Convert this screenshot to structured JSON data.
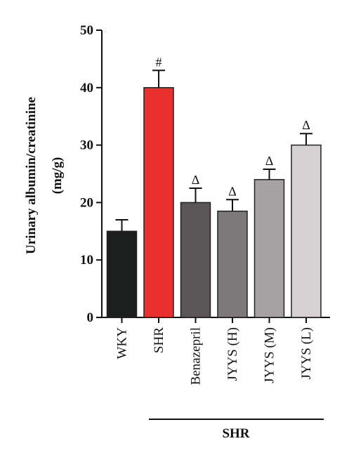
{
  "chart_data": {
    "type": "bar",
    "ylabel_line1": "Urinary albumin/creatinine",
    "ylabel_line2": "(mg/g)",
    "ylim": [
      0,
      50
    ],
    "yticks": [
      0,
      10,
      20,
      30,
      40,
      50
    ],
    "categories": [
      "WKY",
      "SHR",
      "Benazepril",
      "JYYS (H)",
      "JYYS (M)",
      "JYYS (L)"
    ],
    "values": [
      15,
      40,
      20,
      18.5,
      24,
      30
    ],
    "errors": [
      2,
      3,
      2.5,
      2,
      1.8,
      2
    ],
    "significance": [
      "",
      "#",
      "Δ",
      "Δ",
      "Δ",
      "Δ"
    ],
    "colors": [
      "#1c1f1e",
      "#e8302c",
      "#5a5556",
      "#7d797a",
      "#a6a1a2",
      "#d6d1d2"
    ],
    "group_label": "SHR",
    "grid": false
  }
}
